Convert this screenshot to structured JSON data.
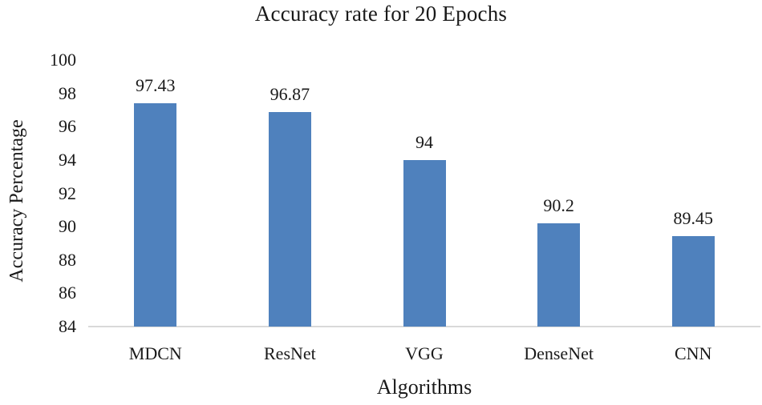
{
  "chart_data": {
    "type": "bar",
    "title": "Accuracy rate for 20 Epochs",
    "xlabel": "Algorithms",
    "ylabel": "Accuracy Percentage",
    "categories": [
      "MDCN",
      "ResNet",
      "VGG",
      "DenseNet",
      "CNN"
    ],
    "values": [
      97.43,
      96.87,
      94,
      90.2,
      89.45
    ],
    "data_labels": [
      "97.43",
      "96.87",
      "94",
      "90.2",
      "89.45"
    ],
    "ylim": [
      84,
      100
    ],
    "yticks": [
      84,
      86,
      88,
      90,
      92,
      94,
      96,
      98,
      100
    ],
    "grid": false,
    "legend": "none",
    "bar_color": "#4F81BD",
    "axis_line_color": "#D9D9D9",
    "text_color": "#1A1A1A"
  }
}
